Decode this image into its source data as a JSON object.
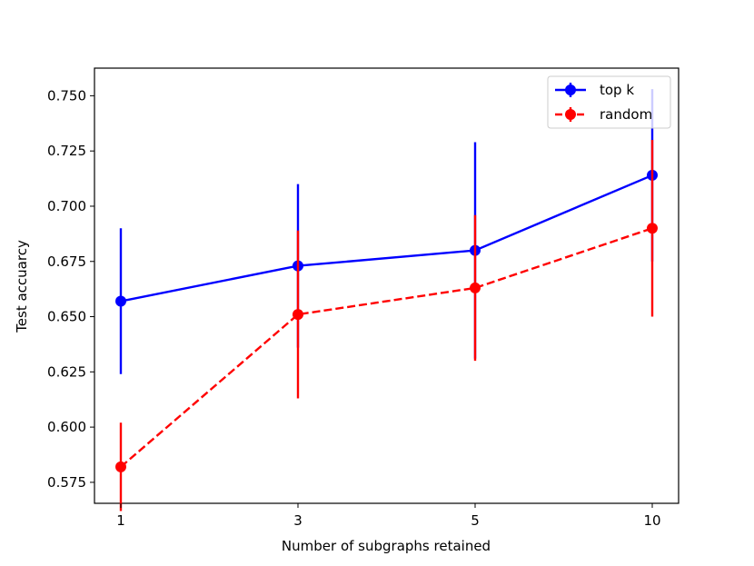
{
  "chart_data": {
    "type": "line",
    "xlabel": "Number of subgraphs retained",
    "ylabel": "Test accuarcy",
    "categories": [
      "1",
      "3",
      "5",
      "10"
    ],
    "ylim": [
      0.5655,
      0.7625
    ],
    "y_ticks": [
      "0.575",
      "0.600",
      "0.625",
      "0.650",
      "0.675",
      "0.700",
      "0.725",
      "0.750"
    ],
    "y_tick_values": [
      0.575,
      0.6,
      0.625,
      0.65,
      0.675,
      0.7,
      0.725,
      0.75
    ],
    "grid": false,
    "legend_position": "top-right",
    "series": [
      {
        "name": "top k",
        "color": "#0000ff",
        "line_style": "solid",
        "values": [
          0.657,
          0.673,
          0.68,
          0.714
        ],
        "error": [
          0.033,
          0.037,
          0.049,
          0.039
        ]
      },
      {
        "name": "random",
        "color": "#ff0000",
        "line_style": "dashed",
        "values": [
          0.582,
          0.651,
          0.663,
          0.69
        ],
        "error": [
          0.02,
          0.038,
          0.033,
          0.04
        ]
      }
    ]
  }
}
